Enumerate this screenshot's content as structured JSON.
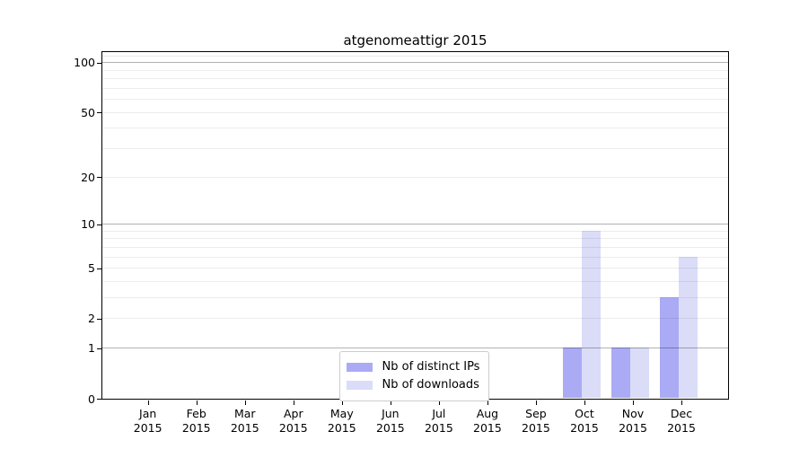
{
  "chart_data": {
    "type": "bar",
    "title": "atgenomeattigr 2015",
    "categories": [
      "Jan 2015",
      "Feb 2015",
      "Mar 2015",
      "Apr 2015",
      "May 2015",
      "Jun 2015",
      "Jul 2015",
      "Aug 2015",
      "Sep 2015",
      "Oct 2015",
      "Nov 2015",
      "Dec 2015"
    ],
    "x_tick_months": [
      "Jan",
      "Feb",
      "Mar",
      "Apr",
      "May",
      "Jun",
      "Jul",
      "Aug",
      "Sep",
      "Oct",
      "Nov",
      "Dec"
    ],
    "x_tick_year": "2015",
    "series": [
      {
        "name": "Nb of distinct IPs",
        "color": "#aaabf4",
        "values": [
          0,
          0,
          0,
          0,
          0,
          0,
          0,
          0,
          0,
          1,
          1,
          3
        ]
      },
      {
        "name": "Nb of downloads",
        "color": "#dbdcf8",
        "values": [
          0,
          0,
          0,
          0,
          0,
          0,
          0,
          0,
          0,
          9,
          1,
          6
        ]
      }
    ],
    "y_axis": {
      "scale": "log1p",
      "max": 116,
      "tick_labels": [
        "0",
        "1",
        "2",
        "5",
        "10",
        "20",
        "50",
        "100"
      ],
      "tick_values": [
        0,
        1,
        2,
        5,
        10,
        20,
        50,
        100
      ],
      "major_grid_values": [
        1,
        10,
        100
      ],
      "minor_grid_values": [
        2,
        3,
        4,
        5,
        6,
        7,
        8,
        9,
        20,
        30,
        40,
        50,
        60,
        70,
        80,
        90,
        110
      ]
    },
    "grid": true,
    "legend": {
      "position": "lower-center",
      "items": [
        "Nb of distinct IPs",
        "Nb of downloads"
      ]
    }
  }
}
